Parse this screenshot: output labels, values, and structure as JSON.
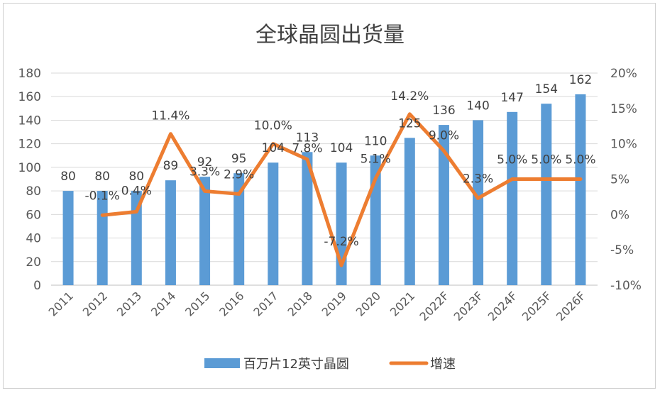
{
  "chart_data": {
    "type": "bar",
    "title": "全球晶圆出货量",
    "categories": [
      "2011",
      "2012",
      "2013",
      "2014",
      "2015",
      "2016",
      "2017",
      "2018",
      "2019",
      "2020",
      "2021",
      "2022F",
      "2023F",
      "2024F",
      "2025F",
      "2026F"
    ],
    "series": [
      {
        "name": "百万片12英寸晶圆",
        "type": "bar",
        "axis": "left",
        "color": "#5B9BD5",
        "values": [
          80,
          80,
          80,
          89,
          92,
          95,
          104,
          113,
          104,
          110,
          125,
          136,
          140,
          147,
          154,
          162
        ],
        "labels": [
          "80",
          "80",
          "80",
          "89",
          "92",
          "95",
          "104",
          "113",
          "104",
          "110",
          "125",
          "136",
          "140",
          "147",
          "154",
          "162"
        ]
      },
      {
        "name": "增速",
        "type": "line",
        "axis": "right",
        "color": "#ED7D31",
        "values": [
          null,
          -0.1,
          0.4,
          11.4,
          3.3,
          2.9,
          10.0,
          7.8,
          -7.2,
          5.1,
          14.2,
          9.0,
          2.3,
          5.0,
          5.0,
          5.0
        ],
        "labels": [
          null,
          "-0.1%",
          "0.4%",
          "11.4%",
          "3.3%",
          "2.9%",
          "10.0%",
          "7.8%",
          "-7.2%",
          "5.1%",
          "14.2%",
          "9.0%",
          "2.3%",
          "5.0%",
          "5.0%",
          "5.0%"
        ]
      }
    ],
    "y_left": {
      "min": 0,
      "max": 180,
      "step": 20,
      "ticks": [
        "0",
        "20",
        "40",
        "60",
        "80",
        "100",
        "120",
        "140",
        "160",
        "180"
      ]
    },
    "y_right": {
      "min": -10,
      "max": 20,
      "step": 5,
      "ticks": [
        "-10%",
        "-5%",
        "0%",
        "5%",
        "10%",
        "15%",
        "20%"
      ]
    },
    "grid": true,
    "legend_position": "bottom"
  }
}
